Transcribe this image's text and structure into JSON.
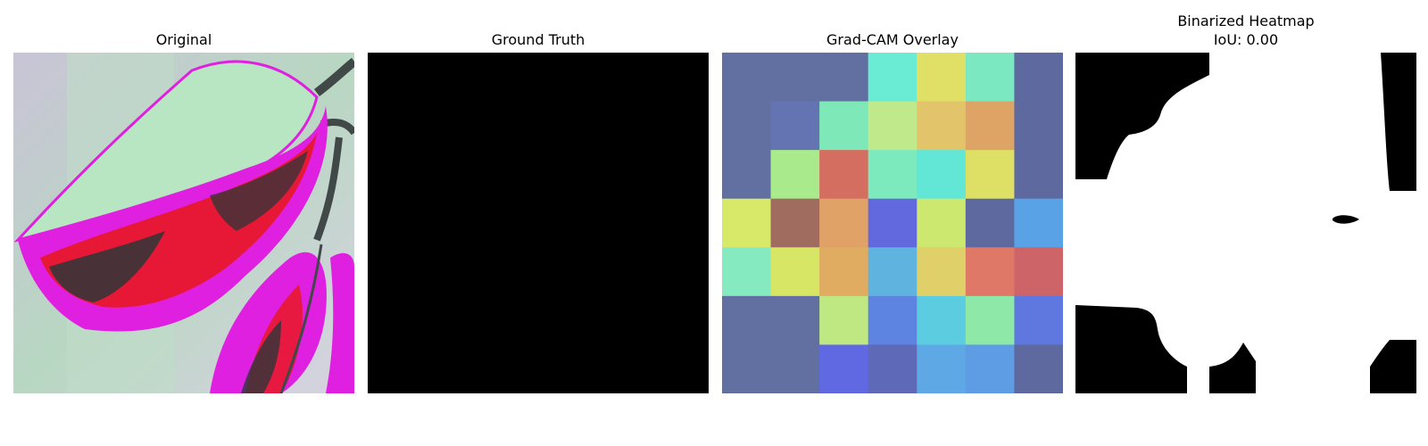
{
  "panels": {
    "original": {
      "title": "Original"
    },
    "ground_truth": {
      "title": "Ground Truth"
    },
    "gradcam": {
      "title": "Grad-CAM Overlay",
      "grid": [
        [
          "#6170a0",
          "#6170a0",
          "#6170a0",
          "#6aebd4",
          "#e0e066",
          "#7ce8c2",
          "#5e69a0"
        ],
        [
          "#6170a0",
          "#6474b2",
          "#7ee8b8",
          "#bfe98a",
          "#e2c46a",
          "#dea466",
          "#5e69a0"
        ],
        [
          "#6170a0",
          "#a8ea8c",
          "#d46e60",
          "#7ceabc",
          "#62e6d6",
          "#dde064",
          "#5e69a0"
        ],
        [
          "#d8e868",
          "#a06c60",
          "#e0a266",
          "#6268de",
          "#cce86e",
          "#5e69a0",
          "#5aa2e6"
        ],
        [
          "#86eac0",
          "#d8e666",
          "#e0ac62",
          "#5eb4de",
          "#e0d06a",
          "#e07868",
          "#cc6468"
        ],
        [
          "#6170a0",
          "#6170a0",
          "#c0e882",
          "#5e84e2",
          "#5ccce0",
          "#8ee8a8",
          "#5e78e0"
        ],
        [
          "#6170a0",
          "#6170a0",
          "#6068e2",
          "#5e69b8",
          "#5ea8e6",
          "#5e9ce4",
          "#5e69a0"
        ]
      ]
    },
    "binarized": {
      "title_line1": "Binarized Heatmap",
      "title_line2": "IoU: 0.00"
    }
  }
}
